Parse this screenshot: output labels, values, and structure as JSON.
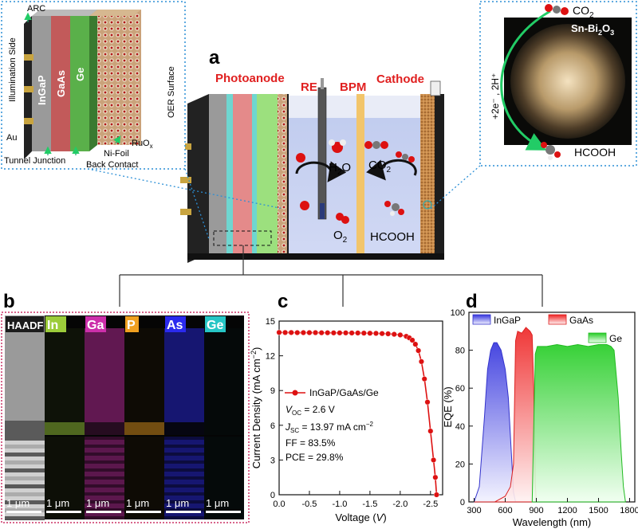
{
  "panel_letters": {
    "a": "a",
    "b": "b",
    "c": "c",
    "d": "d"
  },
  "panel_a": {
    "photoanode": "Photoanode",
    "re": "RE",
    "bpm": "BPM",
    "cathode": "Cathode",
    "molecules": {
      "h2o": "H",
      "h2o_sub": "2",
      "h2o_tail": "O",
      "co2": "CO",
      "co2_sub": "2",
      "o2": "O",
      "o2_sub": "2",
      "hcooh": "HCOOH"
    },
    "stack_inset": {
      "arc": "ARC",
      "illumination_side": "Illumination Side",
      "au": "Au",
      "layers": [
        "InGaP",
        "GaAs",
        "Ge"
      ],
      "oer_surface": "OER Surface",
      "ruox": "RuO",
      "ruox_sub": "x",
      "ni_foil": "Ni-Foil",
      "tunnel_junction": "Tunnel Junction",
      "back_contact": "Back Contact"
    },
    "cathode_inset": {
      "co2": "CO",
      "co2_sub": "2",
      "catalyst": "Sn-Bi",
      "catalyst_sub": "2",
      "catalyst_mid": "O",
      "catalyst_sub2": "3",
      "reaction": "+2e⁻ , 2H⁺",
      "product": "HCOOH"
    }
  },
  "panel_b": {
    "maps": [
      {
        "label": "HAADF",
        "color": "#ffffff",
        "bg": "#1c1c1c"
      },
      {
        "label": "In",
        "color": "#9ccc3a",
        "bg": "#9ccc3a"
      },
      {
        "label": "Ga",
        "color": "#cc2faa",
        "bg": "#cc2faa"
      },
      {
        "label": "P",
        "color": "#f0a020",
        "bg": "#f0a020"
      },
      {
        "label": "As",
        "color": "#2a2aee",
        "bg": "#2a2aee"
      },
      {
        "label": "Ge",
        "color": "#27c6c6",
        "bg": "#27c6c6"
      }
    ],
    "scale_bar": "1 μm"
  },
  "chart_data": [
    {
      "type": "line",
      "panel": "c",
      "xlabel": "Voltage (V)",
      "xlabel_text": "Voltage (",
      "xlabel_var": "V",
      "xlabel_close": ")",
      "ylabel": "Current Density (mA cm⁻²)",
      "ylabel_text": "Current Density (mA cm",
      "ylabel_sup": "−2",
      "ylabel_close": ")",
      "xlim": [
        0.0,
        -2.7
      ],
      "ylim": [
        0,
        15
      ],
      "xticks": [
        "0.0",
        "-0.5",
        "-1.0",
        "-1.5",
        "-2.0",
        "-2.5"
      ],
      "xtick_values": [
        0.0,
        -0.5,
        -1.0,
        -1.5,
        -2.0,
        -2.5
      ],
      "yticks": [
        "0",
        "3",
        "6",
        "9",
        "12",
        "15"
      ],
      "ytick_values": [
        0,
        3,
        6,
        9,
        12,
        15
      ],
      "series": [
        {
          "name": "InGaP/GaAs/Ge",
          "color": "#dd1111",
          "x": [
            0.0,
            -0.1,
            -0.2,
            -0.3,
            -0.4,
            -0.5,
            -0.6,
            -0.7,
            -0.8,
            -0.9,
            -1.0,
            -1.1,
            -1.2,
            -1.3,
            -1.4,
            -1.5,
            -1.6,
            -1.7,
            -1.8,
            -1.9,
            -2.0,
            -2.1,
            -2.15,
            -2.2,
            -2.25,
            -2.3,
            -2.35,
            -2.4,
            -2.45,
            -2.5,
            -2.55,
            -2.58,
            -2.6
          ],
          "y": [
            14.02,
            14.01,
            14.01,
            14.0,
            14.0,
            14.0,
            14.0,
            13.99,
            13.99,
            13.98,
            13.98,
            13.98,
            13.97,
            13.97,
            13.96,
            13.95,
            13.94,
            13.92,
            13.9,
            13.86,
            13.8,
            13.68,
            13.55,
            13.35,
            13.0,
            12.45,
            11.5,
            10.0,
            8.0,
            5.5,
            3.0,
            1.5,
            0.0
          ]
        }
      ],
      "legend": {
        "series": "InGaP/GaAs/Ge",
        "voc_label": "V",
        "voc_sub": "OC",
        "voc_value": " = 2.6 V",
        "jsc_label": "J",
        "jsc_sub": "SC",
        "jsc_value": " = 13.97 mA cm",
        "jsc_sup": "−2",
        "ff": "FF = 83.5%",
        "pce": "PCE = 29.8%"
      }
    },
    {
      "type": "area",
      "panel": "d",
      "xlabel": "Wavelength (nm)",
      "ylabel": "EQE (%)",
      "xlim": [
        250,
        1850
      ],
      "ylim": [
        0,
        100
      ],
      "xticks": [
        "300",
        "600",
        "900",
        "1200",
        "1500",
        "1800"
      ],
      "xtick_values": [
        300,
        600,
        900,
        1200,
        1500,
        1800
      ],
      "yticks": [
        "0",
        "20",
        "40",
        "60",
        "80",
        "100"
      ],
      "ytick_values": [
        0,
        20,
        40,
        60,
        80,
        100
      ],
      "series": [
        {
          "name": "InGaP",
          "color": "#3333cc",
          "x": [
            300,
            350,
            400,
            430,
            460,
            490,
            520,
            560,
            600,
            630,
            660,
            680,
            700
          ],
          "y": [
            0,
            8,
            45,
            70,
            80,
            84,
            84,
            80,
            70,
            55,
            25,
            5,
            0
          ]
        },
        {
          "name": "GaAs",
          "color": "#dd2222",
          "x": [
            300,
            500,
            600,
            650,
            680,
            700,
            720,
            760,
            800,
            840,
            860,
            875,
            890,
            900
          ],
          "y": [
            0,
            0,
            3,
            8,
            20,
            85,
            90,
            89,
            92,
            90,
            88,
            60,
            10,
            0
          ]
        },
        {
          "name": "Ge",
          "color": "#22bb22",
          "x": [
            860,
            875,
            890,
            910,
            1000,
            1100,
            1200,
            1300,
            1400,
            1500,
            1580,
            1620,
            1650,
            1690,
            1720,
            1740,
            1760
          ],
          "y": [
            0,
            40,
            78,
            82,
            82,
            83,
            82,
            83,
            82,
            83,
            83,
            82,
            80,
            55,
            25,
            8,
            0
          ]
        }
      ],
      "legend_position": "top"
    }
  ]
}
